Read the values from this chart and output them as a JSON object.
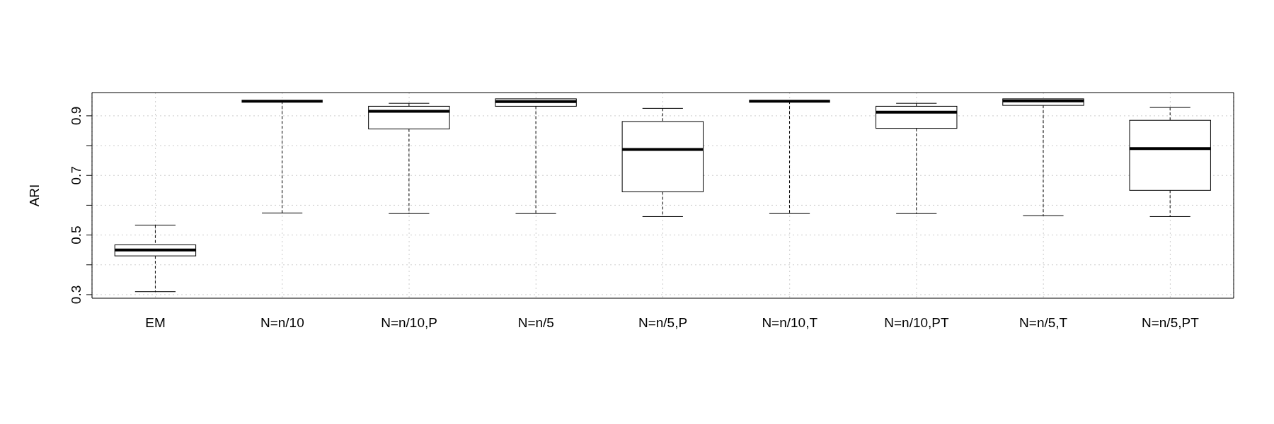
{
  "chart_data": {
    "type": "box",
    "ylabel": "ARI",
    "categories": [
      "EM",
      "N=n/10",
      "N=n/10,P",
      "N=n/5",
      "N=n/5,P",
      "N=n/10,T",
      "N=n/10,PT",
      "N=n/5,T",
      "N=n/5,PT"
    ],
    "boxes": [
      {
        "low": 0.31,
        "q1": 0.43,
        "median": 0.45,
        "q3": 0.467,
        "high": 0.533
      },
      {
        "low": 0.574,
        "q1": 0.949,
        "median": 0.949,
        "q3": 0.949,
        "high": 0.949
      },
      {
        "low": 0.572,
        "q1": 0.856,
        "median": 0.915,
        "q3": 0.932,
        "high": 0.942
      },
      {
        "low": 0.572,
        "q1": 0.932,
        "median": 0.948,
        "q3": 0.957,
        "high": 0.957
      },
      {
        "low": 0.562,
        "q1": 0.645,
        "median": 0.787,
        "q3": 0.881,
        "high": 0.925
      },
      {
        "low": 0.572,
        "q1": 0.949,
        "median": 0.949,
        "q3": 0.949,
        "high": 0.949
      },
      {
        "low": 0.572,
        "q1": 0.858,
        "median": 0.912,
        "q3": 0.932,
        "high": 0.942
      },
      {
        "low": 0.565,
        "q1": 0.935,
        "median": 0.95,
        "q3": 0.957,
        "high": 0.957
      },
      {
        "low": 0.562,
        "q1": 0.65,
        "median": 0.79,
        "q3": 0.885,
        "high": 0.928
      }
    ],
    "ylim": [
      0.288,
      0.978
    ],
    "yticks": [
      0.3,
      {
        "value": 0.4,
        "label": null
      },
      0.5,
      {
        "value": 0.6,
        "label": null
      },
      0.7,
      {
        "value": 0.8,
        "label": null
      },
      0.9
    ],
    "grid": true
  }
}
